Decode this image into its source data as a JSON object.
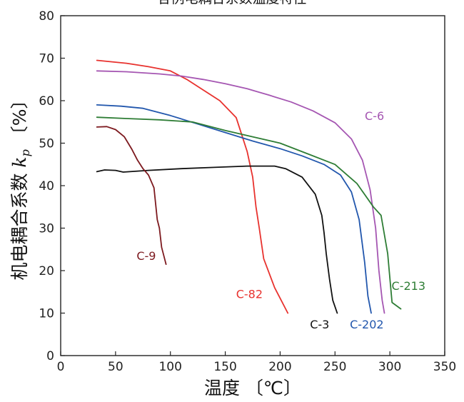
{
  "chart_data": {
    "type": "line",
    "title": "各例电耦合系数温度特性",
    "xlabel": "温度 〔℃〕",
    "ylabel": "机电耦合系数 kp〔%〕",
    "ylabel_parts": [
      "机电耦合系数 ",
      "k",
      "p",
      " 〔%〕"
    ],
    "xlim": [
      0,
      350
    ],
    "ylim": [
      0,
      80
    ],
    "xticks": [
      0,
      50,
      100,
      150,
      200,
      250,
      300,
      350
    ],
    "yticks": [
      0,
      10,
      20,
      30,
      40,
      50,
      60,
      70,
      80
    ],
    "grid": false,
    "legend": "inline labels",
    "series": [
      {
        "name": "C-82",
        "color": "#e8322e",
        "label_at": [
          172,
          13.5
        ],
        "x": [
          33,
          60,
          80,
          100,
          115,
          130,
          145,
          160,
          170,
          175,
          178,
          181,
          185,
          195,
          207
        ],
        "y": [
          69.5,
          68.8,
          68.0,
          67.0,
          65.0,
          62.5,
          60.0,
          56.0,
          48.0,
          42.0,
          35.0,
          30.0,
          22.8,
          16.0,
          10.0
        ]
      },
      {
        "name": "C-6",
        "color": "#a556b2",
        "label_at": [
          286,
          55.5
        ],
        "x": [
          33,
          60,
          90,
          110,
          130,
          150,
          170,
          190,
          210,
          230,
          250,
          265,
          275,
          282,
          287,
          290,
          293,
          295
        ],
        "y": [
          67.0,
          66.8,
          66.3,
          65.8,
          65.0,
          64.0,
          62.8,
          61.3,
          59.7,
          57.6,
          54.8,
          51.0,
          46.0,
          39.0,
          30.0,
          20.0,
          13.0,
          10.0
        ]
      },
      {
        "name": "C-202",
        "color": "#2257ad",
        "label_at": [
          279,
          6.4
        ],
        "x": [
          33,
          55,
          75,
          100,
          125,
          150,
          175,
          200,
          220,
          240,
          255,
          265,
          272,
          277,
          280,
          283
        ],
        "y": [
          59.0,
          58.7,
          58.2,
          56.5,
          54.5,
          52.5,
          50.5,
          48.7,
          47.0,
          45.0,
          42.5,
          38.5,
          32.0,
          22.0,
          14.0,
          10.0
        ]
      },
      {
        "name": "C-213",
        "color": "#2e7d35",
        "label_at": [
          317,
          15.5
        ],
        "x": [
          33,
          60,
          90,
          120,
          150,
          175,
          200,
          225,
          250,
          270,
          285,
          292,
          298,
          302,
          310
        ],
        "y": [
          56.1,
          55.8,
          55.5,
          55.0,
          53.0,
          51.5,
          50.0,
          47.5,
          45.0,
          40.5,
          35.0,
          33.0,
          24.0,
          12.5,
          11.0
        ]
      },
      {
        "name": "C-3",
        "color": "#111111",
        "label_at": [
          236,
          6.4
        ],
        "x": [
          33,
          40,
          50,
          57,
          80,
          110,
          140,
          170,
          195,
          205,
          220,
          232,
          238,
          240,
          242,
          245,
          248,
          252
        ],
        "y": [
          43.3,
          43.7,
          43.6,
          43.2,
          43.6,
          44.0,
          44.3,
          44.6,
          44.6,
          44.0,
          42.0,
          38.0,
          33.0,
          29.0,
          24.0,
          18.0,
          13.0,
          10.0
        ]
      },
      {
        "name": "C-9",
        "color": "#7d1a1f",
        "label_at": [
          78,
          22.5
        ],
        "x": [
          33,
          42,
          50,
          58,
          65,
          70,
          75,
          80,
          85,
          88,
          90,
          92,
          94,
          96
        ],
        "y": [
          53.8,
          53.9,
          53.2,
          51.5,
          48.5,
          46.0,
          44.0,
          42.5,
          39.5,
          32.0,
          30.0,
          25.5,
          23.5,
          21.5
        ]
      }
    ]
  }
}
